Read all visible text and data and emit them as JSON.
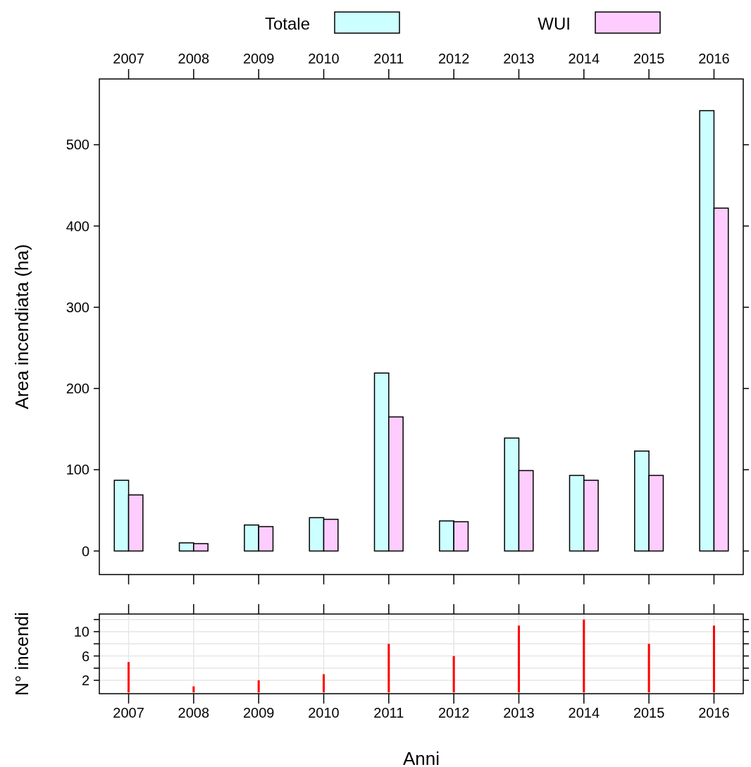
{
  "chart_data": [
    {
      "type": "bar",
      "categories": [
        "2007",
        "2008",
        "2009",
        "2010",
        "2011",
        "2012",
        "2013",
        "2014",
        "2015",
        "2016"
      ],
      "series": [
        {
          "name": "Totale",
          "color": "#ccffff",
          "values": [
            87,
            10,
            32,
            41,
            219,
            37,
            139,
            93,
            123,
            542
          ]
        },
        {
          "name": "WUI",
          "color": "#ffccff",
          "values": [
            69,
            9,
            30,
            39,
            165,
            36,
            99,
            87,
            93,
            422
          ]
        }
      ],
      "ylabel": "Area incendiata (ha)",
      "ylim": [
        -29,
        581
      ],
      "yticks": [
        0,
        100,
        200,
        300,
        400,
        500
      ],
      "legend": "top",
      "grid": false
    },
    {
      "type": "bar",
      "categories": [
        "2007",
        "2008",
        "2009",
        "2010",
        "2011",
        "2012",
        "2013",
        "2014",
        "2015",
        "2016"
      ],
      "series": [
        {
          "color": "#ff0000",
          "values": [
            5,
            1,
            2,
            3,
            8,
            6,
            11,
            12,
            8,
            11
          ]
        }
      ],
      "xlabel": "Anni",
      "ylabel": "N° incendi",
      "ylim": [
        -0.2,
        12.9
      ],
      "yticks": [
        2,
        {
          "value": 4,
          "label": null
        },
        6,
        {
          "value": 8,
          "label": null
        },
        10,
        {
          "value": 12,
          "label": null
        }
      ],
      "grid": true
    }
  ]
}
